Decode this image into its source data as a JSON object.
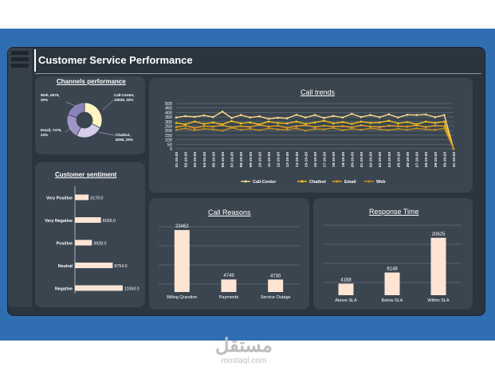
{
  "dashboard": {
    "title": "Customer Service Performance"
  },
  "colors": {
    "accent": "#f5c518",
    "bar_fill": "#fde4d3",
    "background": "#2f6fb1",
    "panel": "#3a4550"
  },
  "watermark": {
    "arabic": "مستقل",
    "latin": "mostaql.com"
  },
  "channels": {
    "title": "Channels performance",
    "labels": [
      {
        "name": "Web",
        "text": "Web, 6576, 20%"
      },
      {
        "name": "Call-Center",
        "text": "Call-Center, 10639, 32%"
      },
      {
        "name": "Chatbot",
        "text": "Chatbot, 8256, 25%"
      },
      {
        "name": "Email",
        "text": "Email, 7479, 23%"
      }
    ]
  },
  "sentiment": {
    "title": "Customer sentiment"
  },
  "trends": {
    "title": "Call trends"
  },
  "reasons": {
    "title": "Call Reasons"
  },
  "response": {
    "title": "Response Time"
  },
  "chart_data": [
    {
      "id": "channels",
      "type": "pie",
      "title": "Channels performance",
      "categories": [
        "Call-Center",
        "Chatbot",
        "Email",
        "Web"
      ],
      "values": [
        10639,
        8256,
        7479,
        6576
      ],
      "percents": [
        32,
        25,
        23,
        20
      ],
      "colors": [
        "#fff4c2",
        "#d6cdea",
        "#9e94c6",
        "#8a82b8"
      ]
    },
    {
      "id": "sentiment",
      "type": "bar",
      "orientation": "horizontal",
      "title": "Customer sentiment",
      "categories": [
        "Very Positive",
        "Very Negative",
        "Positive",
        "Neutral",
        "Negative"
      ],
      "values": [
        3170,
        6026,
        3928,
        8754,
        11063
      ],
      "value_labels": [
        "3170.0",
        "6026.0",
        "3928.0",
        "8754.0",
        "11063.0"
      ],
      "xlim": [
        0,
        12000
      ]
    },
    {
      "id": "trends",
      "type": "line",
      "title": "Call trends",
      "x": [
        "01-10-20",
        "02-10-20",
        "03-10-20",
        "04-10-20",
        "05-10-20",
        "06-10-20",
        "07-10-20",
        "08-10-20",
        "09-10-20",
        "10-10-20",
        "11-10-20",
        "12-10-20",
        "13-10-20",
        "14-10-20",
        "15-10-20",
        "16-10-20",
        "17-10-20",
        "18-10-20",
        "19-10-20",
        "20-10-20",
        "21-10-20",
        "22-10-20",
        "23-10-20",
        "24-10-20",
        "25-10-20",
        "26-10-20",
        "27-10-20",
        "28-10-20",
        "29-10-20",
        "30-10-20",
        "31-10-20"
      ],
      "ylim": [
        0,
        500
      ],
      "yticks": [
        0,
        50,
        100,
        150,
        200,
        250,
        300,
        350,
        400,
        450,
        500
      ],
      "series": [
        {
          "name": "Call-Center",
          "color": "#ffd98a",
          "values": [
            345,
            360,
            352,
            368,
            350,
            410,
            340,
            372,
            345,
            358,
            330,
            342,
            335,
            375,
            345,
            372,
            340,
            362,
            345,
            385,
            350,
            372,
            348,
            380,
            345,
            375,
            372,
            378,
            348,
            372,
            0
          ]
        },
        {
          "name": "Chatbot",
          "color": "#f5c518",
          "values": [
            285,
            270,
            300,
            275,
            290,
            270,
            305,
            280,
            290,
            270,
            300,
            285,
            280,
            300,
            275,
            290,
            310,
            280,
            295,
            275,
            300,
            285,
            290,
            310,
            280,
            295,
            270,
            300,
            285,
            300,
            0
          ]
        },
        {
          "name": "Email",
          "color": "#e6a21e",
          "values": [
            240,
            255,
            230,
            250,
            245,
            260,
            235,
            250,
            240,
            265,
            245,
            255,
            230,
            250,
            260,
            240,
            255,
            245,
            250,
            235,
            260,
            245,
            240,
            255,
            250,
            245,
            260,
            240,
            255,
            250,
            0
          ]
        },
        {
          "name": "Web",
          "color": "#c7901a",
          "values": [
            210,
            225,
            205,
            220,
            215,
            200,
            230,
            210,
            220,
            205,
            225,
            215,
            210,
            225,
            200,
            220,
            215,
            230,
            205,
            220,
            210,
            225,
            215,
            205,
            220,
            210,
            225,
            215,
            210,
            225,
            0
          ]
        }
      ]
    },
    {
      "id": "reasons",
      "type": "bar",
      "title": "Call Reasons",
      "categories": [
        "Billing Question",
        "Payments",
        "Service Outage"
      ],
      "values": [
        23462,
        4749,
        4730
      ],
      "ylim": [
        0,
        25000
      ]
    },
    {
      "id": "response",
      "type": "bar",
      "title": "Response Time",
      "categories": [
        "Above SLA",
        "Below SLA",
        "Within SLA"
      ],
      "values": [
        4168,
        8148,
        20625
      ],
      "ylim": [
        0,
        22000
      ]
    }
  ]
}
